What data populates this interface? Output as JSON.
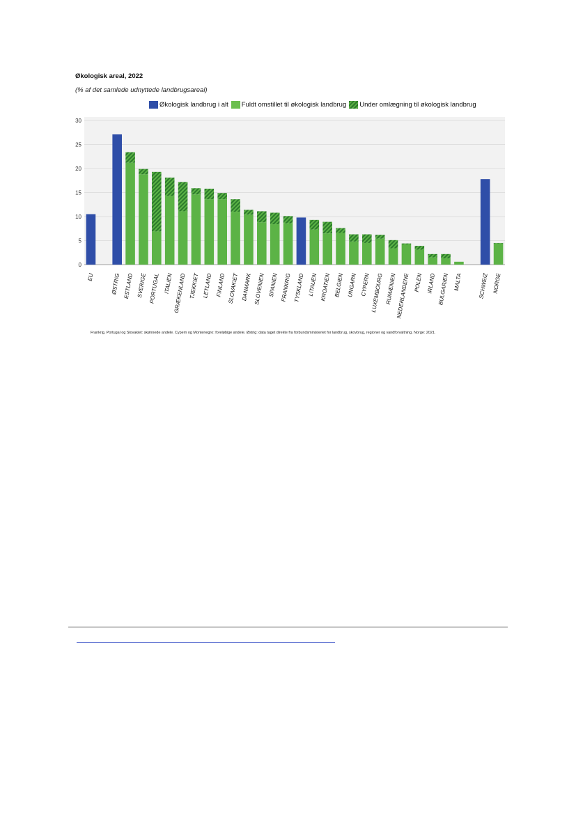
{
  "chart_data": {
    "type": "bar",
    "title": "Økologisk areal, 2022",
    "subtitle": "(% af det samlede udnyttede landbrugsareal)",
    "legend": [
      {
        "name": "Økologisk landbrug i alt",
        "color": "#2f4ea8"
      },
      {
        "name": "Fuldt omstillet til økologisk landbrug",
        "color": "#5cb346"
      },
      {
        "name": "Under omlægning til økologisk landbrug",
        "color": "#2c7a2c"
      }
    ],
    "ylim": [
      0,
      30
    ],
    "yticks": [
      0,
      5,
      10,
      15,
      20,
      25,
      30
    ],
    "grid": true,
    "categories": [
      "EU",
      "ØSTRIG",
      "ESTLAND",
      "SVERIGE",
      "PORTUGAL",
      "ITALIEN",
      "GRÆKENLAND",
      "TJEKKIET",
      "LETLAND",
      "FINLAND",
      "SLOVAKIET",
      "DANMARK",
      "SLOVENIEN",
      "SPANIEN",
      "FRANKRIG",
      "TYSKLAND",
      "LITAUEN",
      "KROATIEN",
      "BELGIEN",
      "UNGARN",
      "CYPERN",
      "LUXEMBOURG",
      "RUMÆNIEN",
      "NEDERLANDENE",
      "POLEN",
      "IRLAND",
      "BULGARIEN",
      "MALTA",
      "SCHWEIZ",
      "NORGE"
    ],
    "totals": [
      10.5,
      27.1,
      23.4,
      19.9,
      19.3,
      18.1,
      17.2,
      15.9,
      15.8,
      14.9,
      13.6,
      11.4,
      11.1,
      10.8,
      10.1,
      9.8,
      9.3,
      8.9,
      7.6,
      6.3,
      6.3,
      6.2,
      5.1,
      4.4,
      3.9,
      2.2,
      2.2,
      0.6,
      17.8,
      4.5
    ],
    "fully_converted": [
      null,
      null,
      21.2,
      18.8,
      6.9,
      14.3,
      11.1,
      14.6,
      13.6,
      13.6,
      11.0,
      10.4,
      8.8,
      8.4,
      8.6,
      null,
      7.3,
      6.5,
      6.6,
      4.8,
      4.5,
      5.4,
      3.4,
      4.2,
      3.1,
      1.5,
      1.3,
      0.6,
      null,
      4.4
    ],
    "series_type": [
      "total",
      "total",
      "split",
      "split",
      "split",
      "split",
      "split",
      "split",
      "split",
      "split",
      "split",
      "split",
      "split",
      "split",
      "split",
      "total",
      "split",
      "split",
      "split",
      "split",
      "split",
      "split",
      "split",
      "split",
      "split",
      "split",
      "split",
      "split",
      "total",
      "split"
    ],
    "positions": [
      0,
      2,
      3,
      4,
      5,
      6,
      7,
      8,
      9,
      10,
      11,
      12,
      13,
      14,
      15,
      16,
      17,
      18,
      19,
      20,
      21,
      22,
      23,
      24,
      25,
      26,
      27,
      28,
      30,
      31
    ],
    "slot_count": 32
  },
  "footnote": "Frankrig, Portugal og Slovakiet: skønnede andele. Cypern og Montenegro: foreløbige andele. Østrig: data taget direkte fra forbundsministeriet for landbrug, skovbrug, regioner og vandforvaltning. Norge: 2021."
}
